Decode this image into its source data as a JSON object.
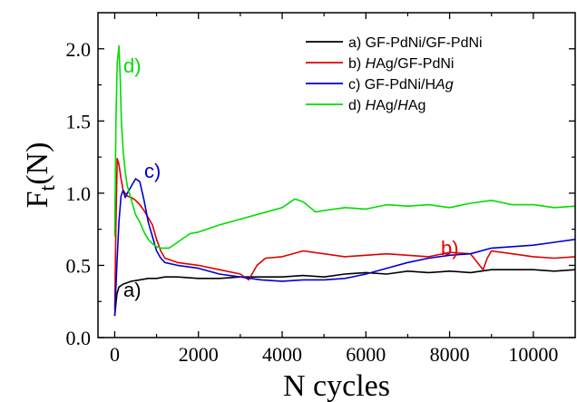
{
  "chart_data": {
    "type": "line",
    "title": "",
    "xlabel": "N cycles",
    "ylabel_main": "F",
    "ylabel_sub": "t",
    "ylabel_unit": "(N)",
    "xlim": [
      -400,
      11000
    ],
    "ylim": [
      0.0,
      2.25
    ],
    "xticks": [
      0,
      2000,
      4000,
      6000,
      8000,
      10000
    ],
    "xtick_labels": [
      "0",
      "2000",
      "4000",
      "6000",
      "8000",
      "10000"
    ],
    "yticks": [
      0.0,
      0.5,
      1.0,
      1.5,
      2.0
    ],
    "ytick_labels": [
      "0.0",
      "0.5",
      "1.0",
      "1.5",
      "2.0"
    ],
    "grid": false,
    "legend_position": "top-right",
    "series": [
      {
        "name_parts": [
          "a) GF-PdNi/GF-PdNi"
        ],
        "italic_parts": [
          false
        ],
        "color": "#000000",
        "annotation": "a)",
        "x": [
          0,
          50,
          100,
          200,
          300,
          400,
          600,
          800,
          1000,
          1200,
          1500,
          2000,
          2500,
          3000,
          3500,
          4000,
          4500,
          5000,
          5500,
          6000,
          6500,
          7000,
          7500,
          8000,
          8500,
          9000,
          9500,
          10000,
          10500,
          11000
        ],
        "y": [
          0.15,
          0.3,
          0.35,
          0.37,
          0.38,
          0.39,
          0.4,
          0.41,
          0.41,
          0.42,
          0.42,
          0.41,
          0.41,
          0.42,
          0.42,
          0.42,
          0.43,
          0.42,
          0.44,
          0.45,
          0.44,
          0.46,
          0.45,
          0.46,
          0.45,
          0.47,
          0.47,
          0.47,
          0.46,
          0.47
        ]
      },
      {
        "name_parts": [
          "b) ",
          "H",
          "Ag/GF-PdNi"
        ],
        "italic_parts": [
          false,
          true,
          false
        ],
        "color": "#e00000",
        "annotation": "b)",
        "x": [
          0,
          30,
          60,
          100,
          150,
          200,
          300,
          400,
          500,
          600,
          700,
          800,
          900,
          1000,
          1100,
          1200,
          1500,
          2000,
          2500,
          3000,
          3200,
          3400,
          3600,
          4000,
          4500,
          5000,
          5500,
          6000,
          6500,
          7000,
          7500,
          8000,
          8500,
          8800,
          8900,
          9000,
          9500,
          10000,
          10500,
          11000
        ],
        "y": [
          0.2,
          0.8,
          1.24,
          1.2,
          1.1,
          1.02,
          0.98,
          0.97,
          0.95,
          0.92,
          0.88,
          0.83,
          0.78,
          0.68,
          0.6,
          0.55,
          0.52,
          0.5,
          0.47,
          0.44,
          0.4,
          0.5,
          0.55,
          0.56,
          0.6,
          0.58,
          0.56,
          0.57,
          0.58,
          0.57,
          0.56,
          0.59,
          0.58,
          0.47,
          0.55,
          0.6,
          0.58,
          0.56,
          0.55,
          0.56
        ]
      },
      {
        "name_parts": [
          "c) GF-PdNi/",
          "H",
          "Ag"
        ],
        "italic_parts": [
          false,
          false,
          true
        ],
        "color": "#0000d0",
        "annotation": "c)",
        "x": [
          0,
          50,
          100,
          150,
          200,
          250,
          300,
          400,
          500,
          600,
          700,
          800,
          900,
          1000,
          1100,
          1200,
          1500,
          2000,
          2500,
          3000,
          3500,
          4000,
          4500,
          5000,
          5500,
          6000,
          6500,
          7000,
          7500,
          8000,
          8500,
          9000,
          9500,
          10000,
          10500,
          11000
        ],
        "y": [
          0.15,
          0.5,
          0.8,
          0.98,
          1.02,
          0.97,
          1.0,
          1.05,
          1.1,
          1.08,
          0.95,
          0.8,
          0.7,
          0.6,
          0.55,
          0.52,
          0.5,
          0.48,
          0.44,
          0.42,
          0.4,
          0.39,
          0.4,
          0.4,
          0.41,
          0.44,
          0.48,
          0.52,
          0.55,
          0.57,
          0.58,
          0.62,
          0.63,
          0.64,
          0.66,
          0.68
        ]
      },
      {
        "name_parts": [
          "d) ",
          "H",
          "Ag/",
          "H",
          "Ag"
        ],
        "italic_parts": [
          false,
          true,
          false,
          true,
          false
        ],
        "color": "#00dd00",
        "annotation": "d)",
        "x": [
          0,
          30,
          60,
          100,
          130,
          160,
          200,
          250,
          300,
          400,
          500,
          600,
          700,
          800,
          900,
          1000,
          1100,
          1200,
          1300,
          1500,
          1800,
          2000,
          2500,
          3000,
          3500,
          4000,
          4300,
          4500,
          4800,
          5000,
          5500,
          6000,
          6500,
          7000,
          7500,
          8000,
          8500,
          9000,
          9500,
          10000,
          10500,
          11000
        ],
        "y": [
          0.7,
          1.5,
          1.9,
          2.02,
          1.8,
          1.5,
          1.3,
          1.15,
          1.05,
          0.95,
          0.85,
          0.8,
          0.73,
          0.68,
          0.65,
          0.63,
          0.62,
          0.62,
          0.62,
          0.66,
          0.72,
          0.73,
          0.78,
          0.82,
          0.86,
          0.9,
          0.96,
          0.94,
          0.87,
          0.88,
          0.9,
          0.89,
          0.92,
          0.91,
          0.92,
          0.9,
          0.93,
          0.95,
          0.92,
          0.92,
          0.9,
          0.91
        ]
      }
    ]
  }
}
